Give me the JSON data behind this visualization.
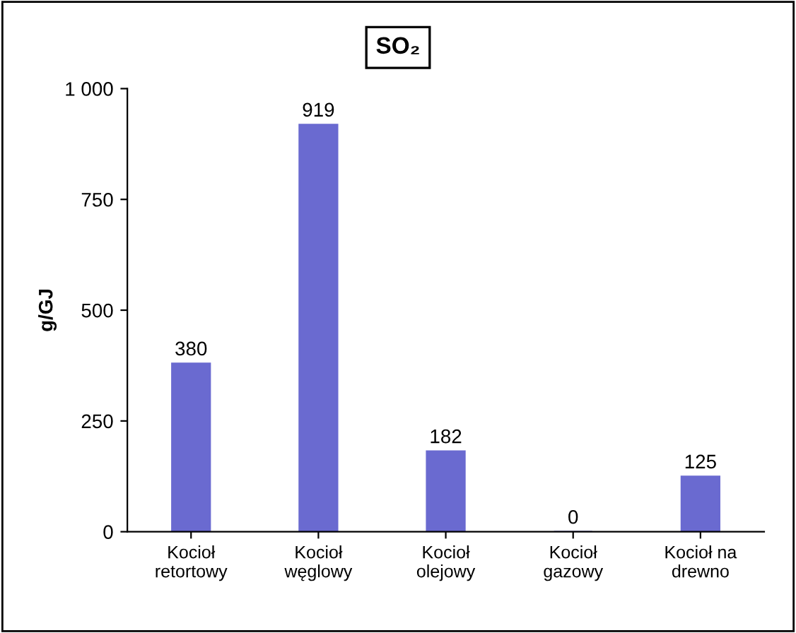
{
  "chart_data": {
    "type": "bar",
    "title": "SO₂",
    "ylabel": "g/GJ",
    "categories": [
      "Kocioł\nretortowy",
      "Kocioł\nwęglowy",
      "Kocioł\nolejowy",
      "Kocioł\ngazowy",
      "Kocioł na\ndrewno"
    ],
    "values": [
      380,
      919,
      182,
      0,
      125
    ],
    "color": "#6a6ad0",
    "ylim": [
      0,
      1000
    ],
    "yticks": [
      0,
      250,
      500,
      750,
      {
        "value": 1000,
        "label": "1 000"
      }
    ],
    "data_labels": true,
    "grid": false,
    "legend": false
  }
}
